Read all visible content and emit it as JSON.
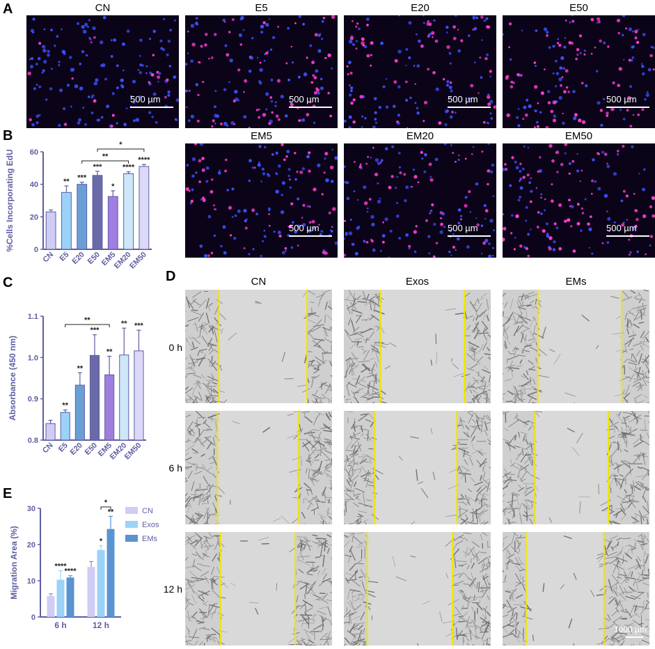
{
  "panels": {
    "A": "A",
    "B": "B",
    "C": "C",
    "D": "D",
    "E": "E"
  },
  "panelA": {
    "titles": [
      "CN",
      "E5",
      "E20",
      "E50"
    ],
    "scalebar": "500 µm"
  },
  "panelB_images": {
    "titles": [
      "EM5",
      "EM20",
      "EM50"
    ],
    "scalebar": "500 µm"
  },
  "panelD": {
    "columns": [
      "CN",
      "Exos",
      "EMs"
    ],
    "rows": [
      "0 h",
      "6 h",
      "12 h"
    ],
    "scalebar": "1000 µm",
    "line_color": "#f2e600"
  },
  "colors": {
    "CN": "#cfcdf5",
    "E5": "#9bd2f7",
    "E20": "#6a9fd6",
    "E50": "#6a6aa8",
    "EM5": "#a07ee0",
    "EM20": "#cde7f8",
    "EM50": "#dcd8f7",
    "axis": "#5d5da3",
    "Exos": "#9bd2f7",
    "EMs": "#5b93d1"
  },
  "chart_data": [
    {
      "id": "B",
      "type": "bar",
      "categories": [
        "CN",
        "E5",
        "E20",
        "E50",
        "EM5",
        "EM20",
        "EM50"
      ],
      "values": [
        23,
        35,
        40,
        45.5,
        32.5,
        46.5,
        51
      ],
      "errors": [
        1.2,
        4,
        1.3,
        2.5,
        3.5,
        1.2,
        1.2
      ],
      "sig": [
        "",
        "**",
        "***",
        "***",
        "*",
        "****",
        "****"
      ],
      "brackets": [
        {
          "from": 2,
          "to": 5,
          "label": "**"
        },
        {
          "from": 3,
          "to": 6,
          "label": "*"
        }
      ],
      "ylabel": "%Cells Incorporating EdU",
      "ylim": [
        0,
        60
      ],
      "yticks": [
        0,
        20,
        40,
        60
      ]
    },
    {
      "id": "C",
      "type": "bar",
      "categories": [
        "CN",
        "E5",
        "E20",
        "E50",
        "EM5",
        "EM20",
        "EM50"
      ],
      "values": [
        0.84,
        0.867,
        0.933,
        1.005,
        0.958,
        1.006,
        1.016
      ],
      "errors": [
        0.008,
        0.006,
        0.03,
        0.05,
        0.045,
        0.065,
        0.05
      ],
      "sig": [
        "",
        "**",
        "**",
        "***",
        "**",
        "**",
        "***"
      ],
      "brackets": [
        {
          "from": 1,
          "to": 4,
          "label": "**"
        }
      ],
      "ylabel": "Absorbance (450 nm)",
      "ylim": [
        0.8,
        1.1
      ],
      "yticks": [
        0.8,
        0.9,
        1.0,
        1.1
      ],
      "ytick_labels": [
        "0.8",
        "0.9",
        "1.0",
        "1.1"
      ]
    },
    {
      "id": "E",
      "type": "bar",
      "categories": [
        "6 h",
        "12 h"
      ],
      "series": [
        {
          "name": "CN",
          "values": [
            5.8,
            13.8
          ],
          "errors": [
            0.6,
            1.5
          ],
          "sig": [
            "",
            ""
          ]
        },
        {
          "name": "Exos",
          "values": [
            10.3,
            18.5
          ],
          "errors": [
            2.5,
            1.2
          ],
          "sig": [
            "****",
            "*"
          ]
        },
        {
          "name": "EMs",
          "values": [
            10.9,
            24.3
          ],
          "errors": [
            0.5,
            3.5
          ],
          "sig": [
            "****",
            "**"
          ]
        }
      ],
      "brackets": [
        {
          "group": 1,
          "from": 1,
          "to": 2,
          "label": "*"
        }
      ],
      "ylabel": "Migration Area (%)",
      "ylim": [
        0,
        30
      ],
      "yticks": [
        0,
        10,
        20,
        30
      ],
      "legend": "top-right"
    }
  ]
}
